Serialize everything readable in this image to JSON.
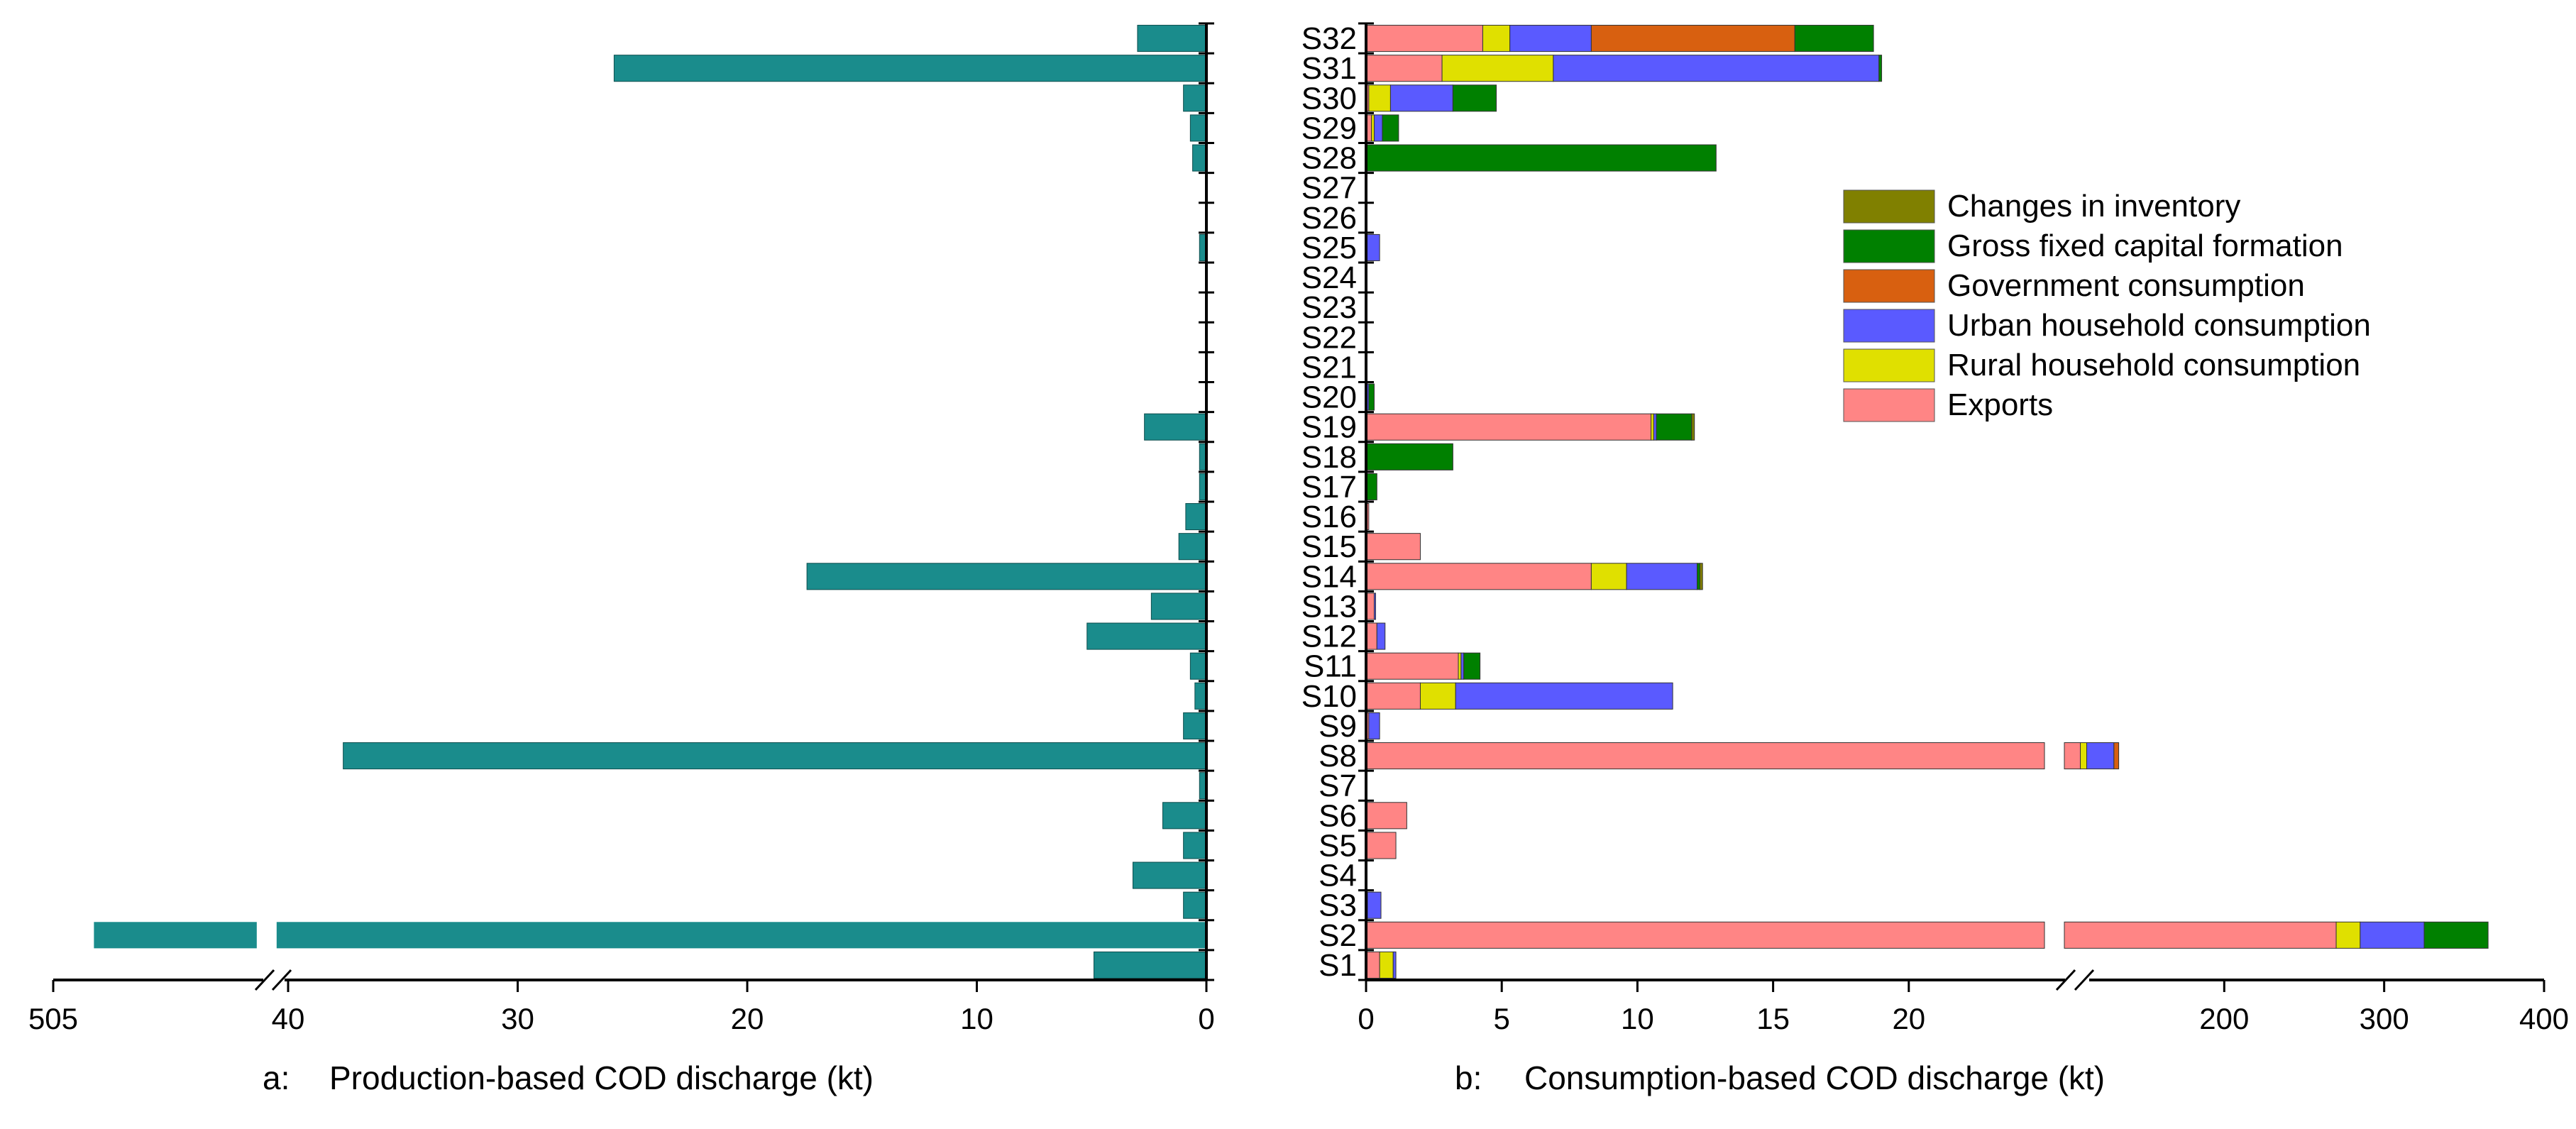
{
  "chart_data": [
    {
      "panel": "a",
      "type": "bar",
      "orientation": "horizontal",
      "direction": "reversed",
      "xlabel_prefix": "a:",
      "xlabel": "Production-based COD discharge (kt)",
      "axis_break": {
        "lower_segment": [
          0,
          40.5
        ],
        "upper_segment": [
          504.5,
          505
        ]
      },
      "x_ticks": [
        "0",
        "10",
        "20",
        "30",
        "40",
        "505"
      ],
      "x_tick_values": [
        0,
        10,
        20,
        30,
        40,
        505
      ],
      "bar_color": "#1a8c8c",
      "categories": [
        "S32",
        "S31",
        "S30",
        "S29",
        "S28",
        "S27",
        "S26",
        "S25",
        "S24",
        "S23",
        "S22",
        "S21",
        "S20",
        "S19",
        "S18",
        "S17",
        "S16",
        "S15",
        "S14",
        "S13",
        "S12",
        "S11",
        "S10",
        "S9",
        "S8",
        "S7",
        "S6",
        "S5",
        "S4",
        "S3",
        "S2",
        "S1"
      ],
      "values": [
        3.0,
        25.8,
        1.0,
        0.7,
        0.6,
        0,
        0,
        0.3,
        0,
        0,
        0,
        0,
        0,
        2.7,
        0.3,
        0.3,
        0.9,
        1.2,
        17.4,
        2.4,
        5.2,
        0.7,
        0.5,
        1.0,
        37.6,
        0.3,
        1.9,
        1.0,
        3.2,
        1.0,
        504.9,
        4.9
      ]
    },
    {
      "panel": "b",
      "type": "bar",
      "orientation": "horizontal",
      "stacked": true,
      "xlabel_prefix": "b:",
      "xlabel": "Consumption-based COD discharge (kt)",
      "axis_break": {
        "lower_segment": [
          0,
          25
        ],
        "upper_segment": [
          100,
          400
        ]
      },
      "x_ticks": [
        "0",
        "5",
        "10",
        "15",
        "20",
        "200",
        "300",
        "400"
      ],
      "x_tick_values": [
        0,
        5,
        10,
        15,
        20,
        200,
        300,
        400
      ],
      "categories": [
        "S32",
        "S31",
        "S30",
        "S29",
        "S28",
        "S27",
        "S26",
        "S25",
        "S24",
        "S23",
        "S22",
        "S21",
        "S20",
        "S19",
        "S18",
        "S17",
        "S16",
        "S15",
        "S14",
        "S13",
        "S12",
        "S11",
        "S10",
        "S9",
        "S8",
        "S7",
        "S6",
        "S5",
        "S4",
        "S3",
        "S2",
        "S1"
      ],
      "series": [
        {
          "name": "Exports",
          "color": "#ff8585",
          "values": [
            4.3,
            2.8,
            0.1,
            0.2,
            0,
            0,
            0,
            0,
            0,
            0,
            0,
            0,
            0,
            10.5,
            0,
            0,
            0.1,
            2.0,
            8.3,
            0.3,
            0.4,
            3.4,
            2.0,
            0.1,
            110,
            0,
            1.5,
            1.1,
            0,
            0.05,
            270,
            0.5
          ]
        },
        {
          "name": "Rural household consumption",
          "color": "#e0e000",
          "values": [
            1.0,
            4.1,
            0.8,
            0.1,
            0,
            0,
            0,
            0,
            0,
            0,
            0,
            0,
            0,
            0.1,
            0,
            0,
            0,
            0,
            1.3,
            0,
            0,
            0.1,
            1.3,
            0,
            4,
            0,
            0,
            0,
            0,
            0,
            15,
            0.5
          ]
        },
        {
          "name": "Urban household consumption",
          "color": "#5a5aff",
          "values": [
            3.0,
            12.0,
            2.3,
            0.3,
            0,
            0,
            0,
            0.5,
            0,
            0,
            0,
            0,
            0.1,
            0.1,
            0,
            0,
            0,
            0,
            2.6,
            0.05,
            0.3,
            0.1,
            8.0,
            0.4,
            17,
            0,
            0,
            0,
            0,
            0.5,
            40,
            0.1
          ]
        },
        {
          "name": "Government consumption",
          "color": "#d86010",
          "values": [
            7.5,
            0,
            0,
            0,
            0,
            0,
            0,
            0,
            0,
            0,
            0,
            0,
            0,
            0,
            0,
            0,
            0,
            0,
            0,
            0,
            0,
            0,
            0,
            0,
            3,
            0,
            0,
            0,
            0,
            0,
            0,
            0
          ]
        },
        {
          "name": "Gross fixed capital formation",
          "color": "#008000",
          "values": [
            2.9,
            0.1,
            1.6,
            0.6,
            12.9,
            0,
            0,
            0,
            0,
            0,
            0,
            0,
            0.2,
            1.3,
            3.2,
            0.4,
            0,
            0,
            0.1,
            0,
            0,
            0.6,
            0,
            0,
            0,
            0,
            0,
            0,
            0,
            0,
            40,
            0
          ]
        },
        {
          "name": "Changes in inventory",
          "color": "#808000",
          "values": [
            0,
            0,
            0,
            0,
            0,
            0,
            0,
            0,
            0,
            0,
            0,
            0,
            0,
            0.1,
            0,
            0,
            0,
            0,
            0.1,
            0,
            0,
            0,
            0,
            0,
            0,
            0,
            0,
            0,
            0,
            0,
            0,
            0
          ]
        }
      ],
      "legend_position": "top-right"
    }
  ]
}
